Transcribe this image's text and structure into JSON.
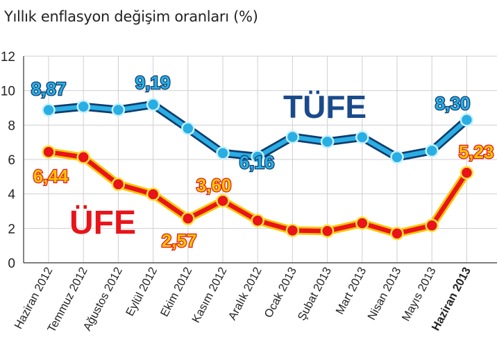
{
  "chart_data": {
    "type": "line",
    "title": "Yıllık enflasyon değişim oranları (%)",
    "categories": [
      "Haziran 2012",
      "Temmuz 2012",
      "Ağustos 2012",
      "Eylül 2012",
      "Ekim 2012",
      "Kasım 2012",
      "Aralık 2012",
      "Ocak 2013",
      "Şubat 2013",
      "Mart 2013",
      "Nisan 2013",
      "Mayıs 2013",
      "Haziran 2013"
    ],
    "highlighted_category": "Haziran 2013",
    "y_ticks": [
      "0",
      "2",
      "4",
      "6",
      "8",
      "10",
      "12"
    ],
    "ylim": [
      0,
      12
    ],
    "grid": true,
    "series": [
      {
        "name": "TÜFE",
        "color": "#29aee4",
        "values": [
          8.87,
          9.07,
          8.88,
          9.19,
          7.8,
          6.37,
          6.16,
          7.31,
          7.03,
          7.29,
          6.13,
          6.51,
          8.3
        ],
        "labels": [
          {
            "index": 0,
            "text": "8,87"
          },
          {
            "index": 3,
            "text": "9,19"
          },
          {
            "index": 6,
            "text": "6,16"
          },
          {
            "index": 12,
            "text": "8,30"
          }
        ]
      },
      {
        "name": "ÜFE",
        "color": "#e8141a",
        "values": [
          6.44,
          6.13,
          4.56,
          3.98,
          2.57,
          3.6,
          2.45,
          1.88,
          1.84,
          2.3,
          1.7,
          2.17,
          5.23
        ],
        "labels": [
          {
            "index": 0,
            "text": "6,44"
          },
          {
            "index": 4,
            "text": "2,57"
          },
          {
            "index": 5,
            "text": "3,60"
          },
          {
            "index": 12,
            "text": "5,23"
          }
        ]
      }
    ]
  }
}
